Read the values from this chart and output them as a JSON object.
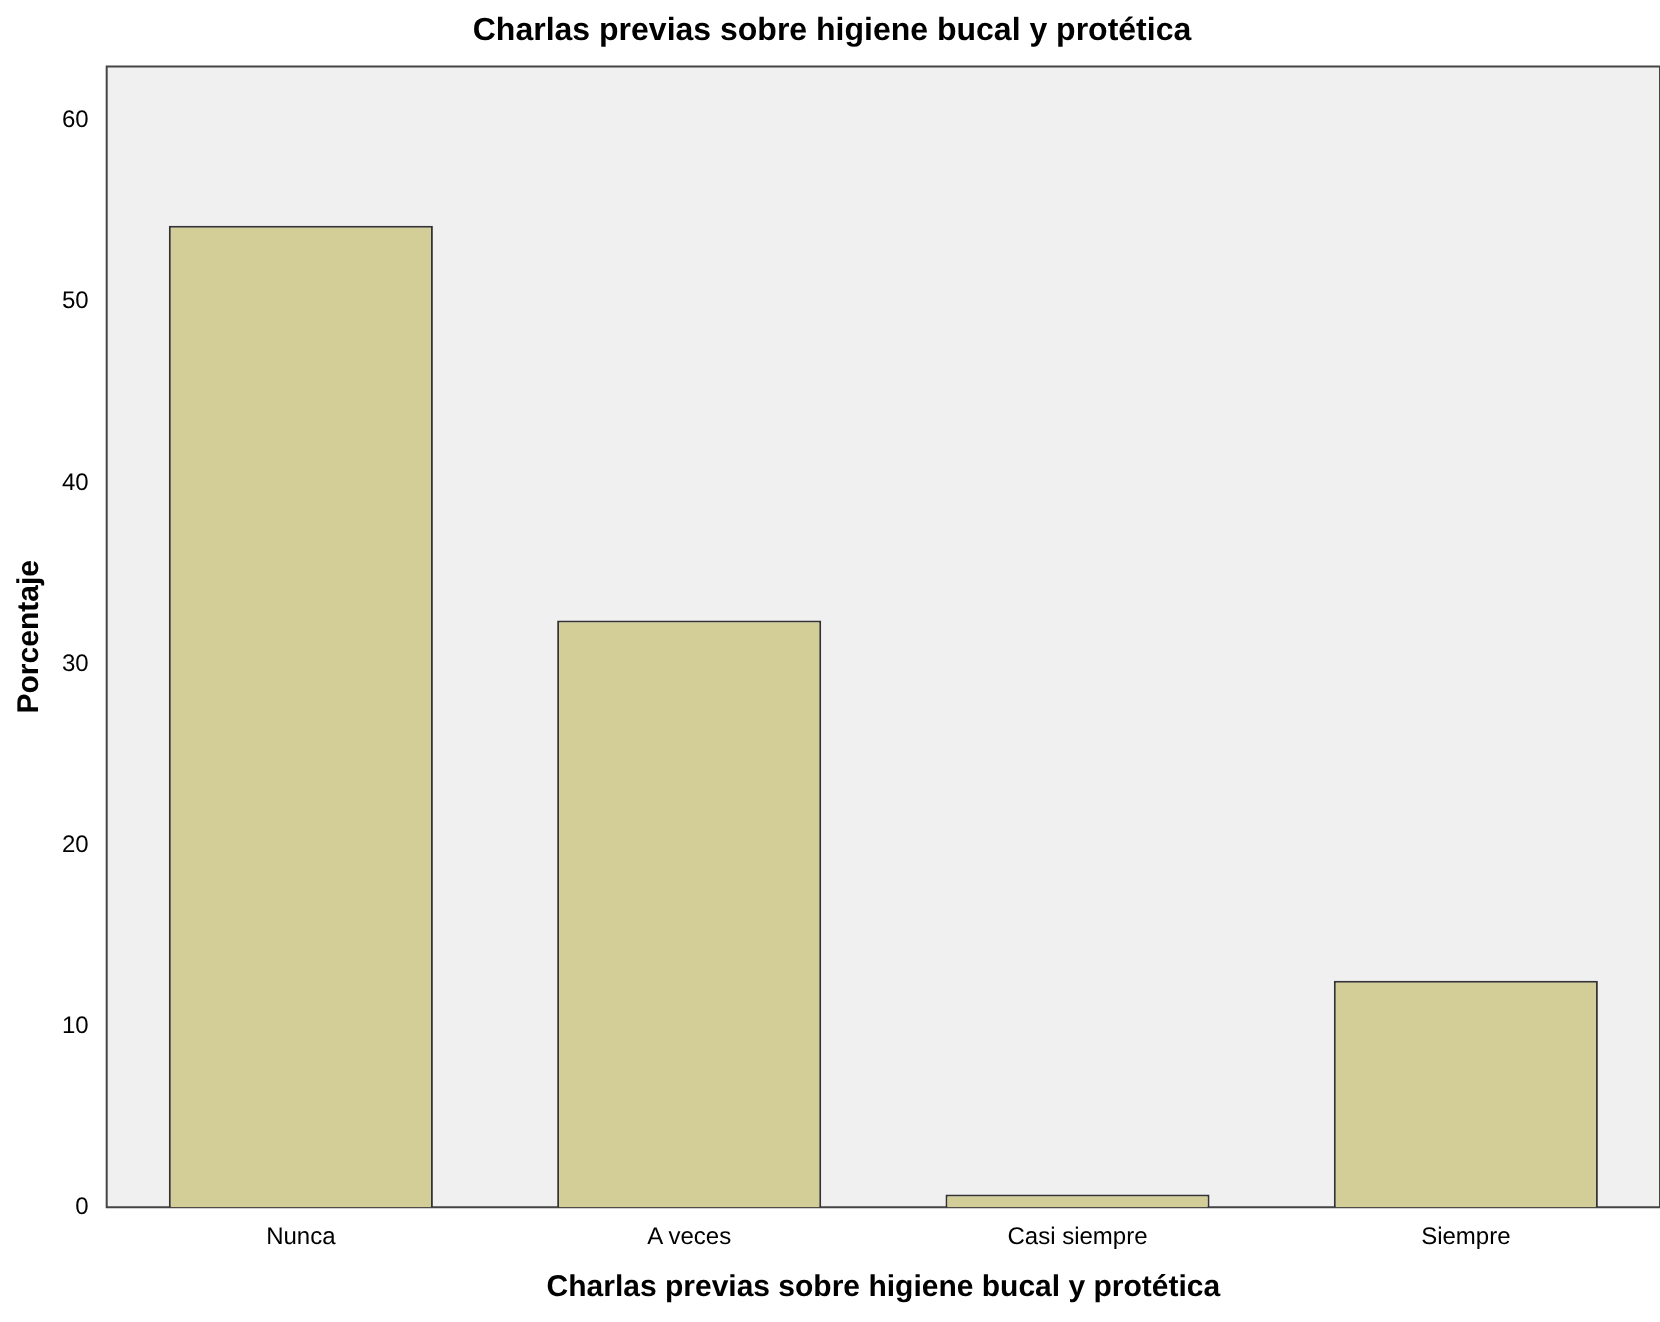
{
  "chart_data": {
    "type": "bar",
    "title": "Charlas previas sobre higiene bucal y protética",
    "xlabel": "Charlas previas sobre higiene bucal y protética",
    "ylabel": "Porcentaje",
    "categories": [
      "Nunca",
      "A veces",
      "Casi siempre",
      "Siempre"
    ],
    "values": [
      54.2,
      32.4,
      0.7,
      12.5
    ],
    "color": "#d3ce97",
    "ylim": [
      0,
      63
    ],
    "yticks": [
      0,
      10,
      20,
      30,
      40,
      50,
      60
    ],
    "grid": false,
    "legend": false
  }
}
